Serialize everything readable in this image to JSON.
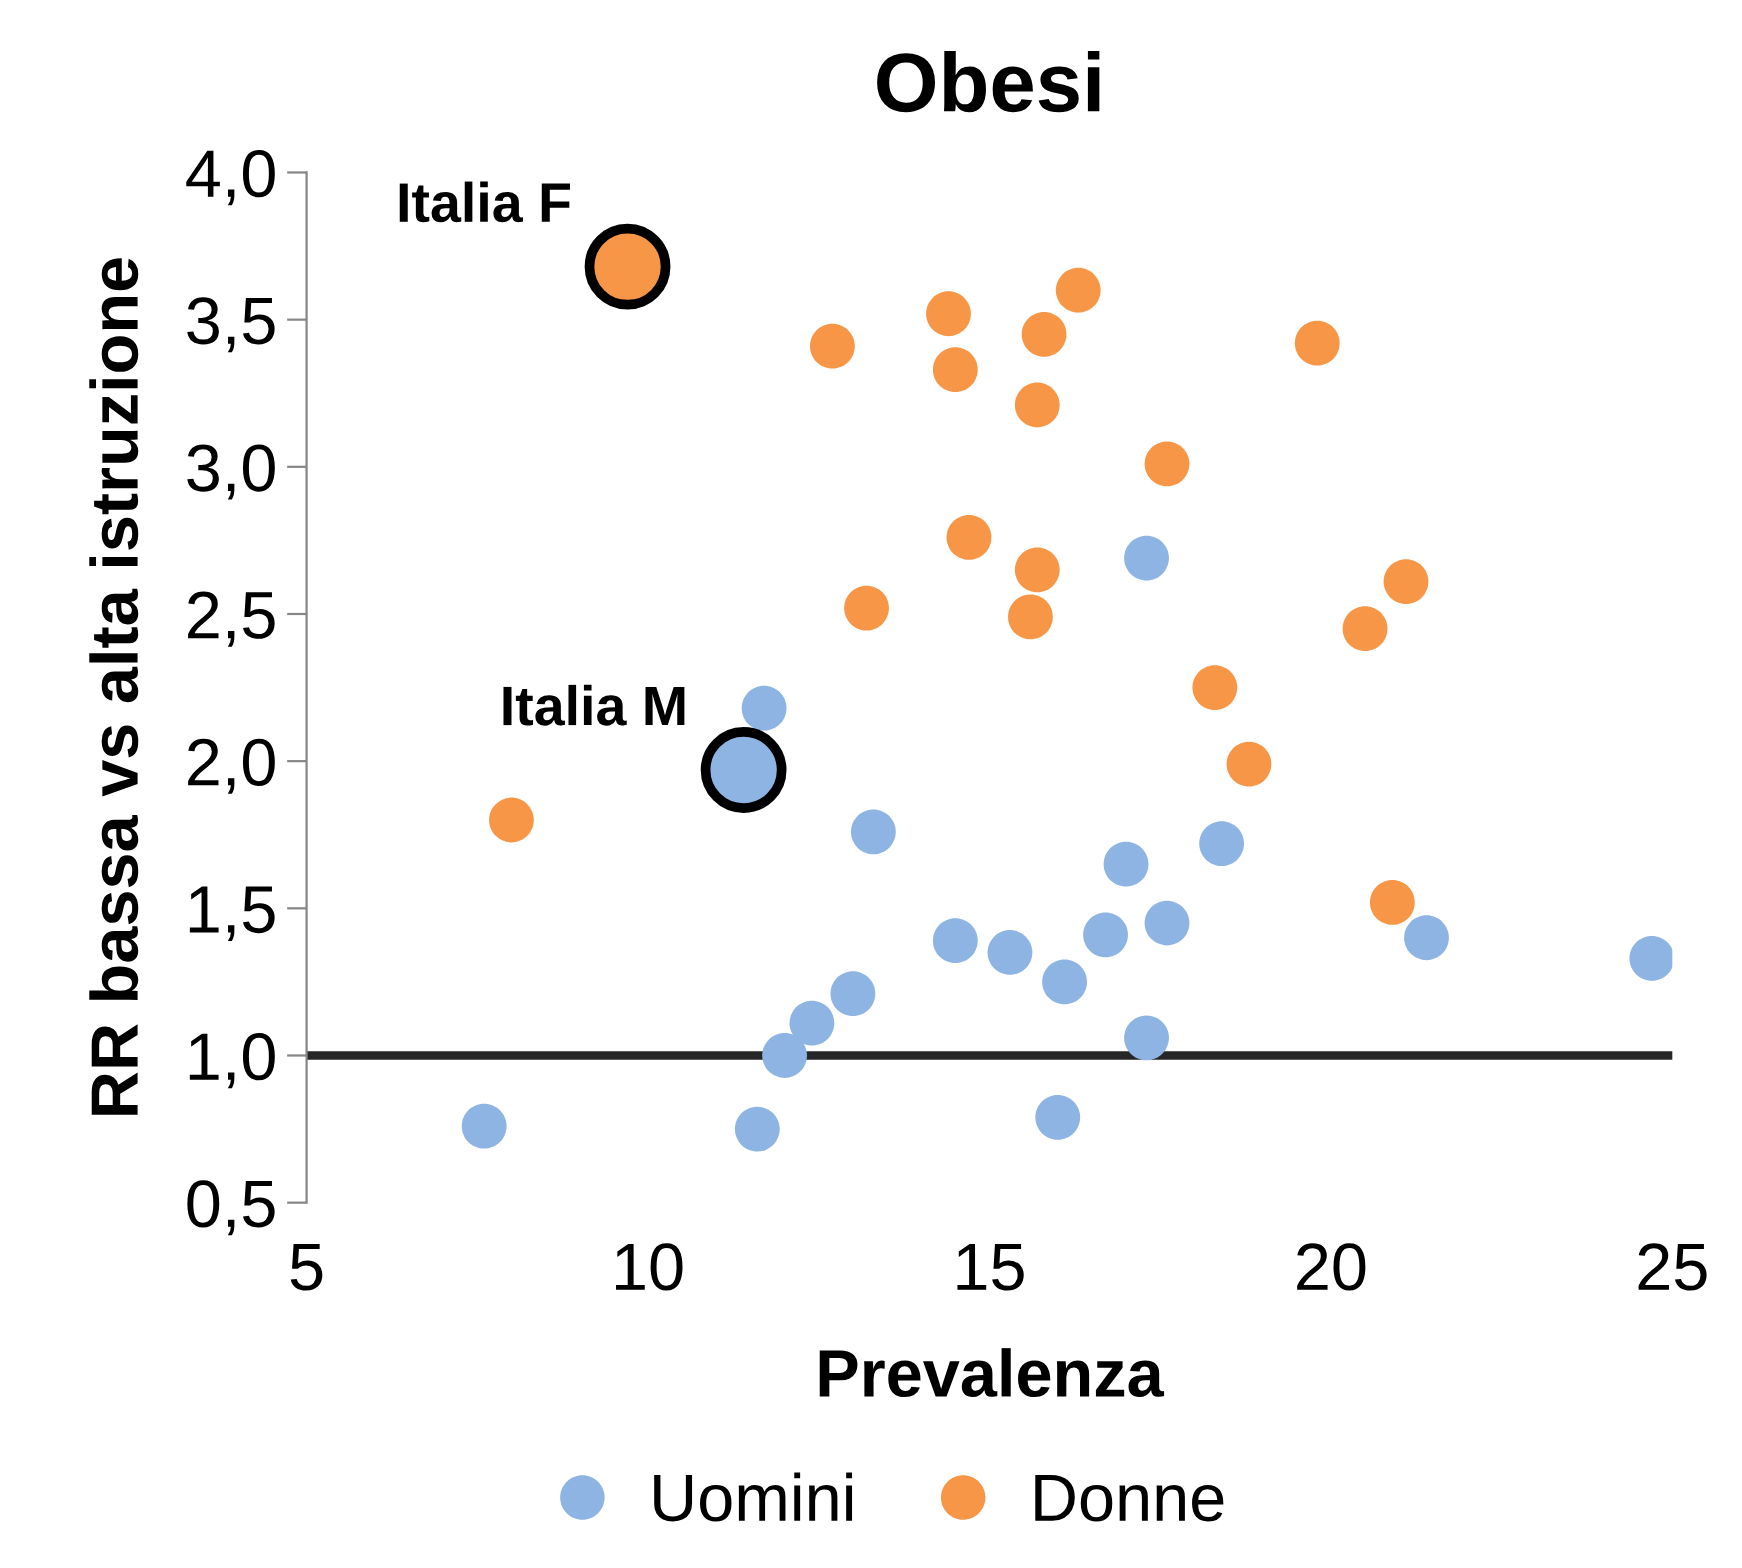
{
  "chart_data": {
    "type": "scatter",
    "title": "Obesi",
    "xlabel": "Prevalenza",
    "ylabel": "RR bassa vs alta istruzione",
    "xlim": [
      5,
      25
    ],
    "ylim": [
      0.5,
      4.0
    ],
    "xticks": [
      5,
      10,
      15,
      20,
      25
    ],
    "yticks": [
      {
        "value": 0.5,
        "label": "0,5"
      },
      {
        "value": 1.0,
        "label": "1,0"
      },
      {
        "value": 1.5,
        "label": "1,5"
      },
      {
        "value": 2.0,
        "label": "2,0"
      },
      {
        "value": 2.5,
        "label": "2,5"
      },
      {
        "value": 3.0,
        "label": "3,0"
      },
      {
        "value": 3.5,
        "label": "3,5"
      },
      {
        "value": 4.0,
        "label": "4,0"
      }
    ],
    "series": [
      {
        "name": "Uomini",
        "color": "#8eb4e3",
        "x": [
          7.6,
          11.6,
          12.0,
          12.4,
          13.0,
          13.3,
          11.7,
          14.5,
          15.3,
          16.1,
          16.0,
          16.7,
          17.0,
          17.3,
          17.6,
          17.3,
          18.4,
          21.4,
          24.7
        ],
        "values": [
          0.76,
          0.75,
          1.0,
          1.11,
          1.21,
          1.76,
          2.18,
          1.39,
          1.35,
          1.25,
          0.79,
          1.41,
          1.65,
          1.06,
          1.45,
          2.69,
          1.72,
          1.4,
          1.33
        ]
      },
      {
        "name": "Donne",
        "color": "#f79646",
        "x": [
          8.0,
          12.7,
          13.2,
          14.4,
          14.5,
          14.7,
          15.6,
          15.7,
          15.7,
          15.8,
          16.3,
          17.6,
          18.3,
          18.8,
          19.8,
          20.5,
          20.9,
          21.1
        ],
        "values": [
          1.8,
          3.41,
          2.52,
          3.52,
          3.33,
          2.76,
          2.49,
          3.21,
          2.65,
          3.45,
          3.6,
          3.01,
          2.25,
          1.99,
          3.42,
          2.45,
          1.52,
          2.61
        ]
      },
      {
        "color": "#8eb4e3",
        "x": [
          11.4
        ],
        "values": [
          1.97
        ]
      },
      {
        "color": "#f79646",
        "x": [
          9.7
        ],
        "values": [
          3.68
        ]
      }
    ],
    "annotations": [
      {
        "text": "Italia M",
        "x": 11.4,
        "y": 1.97
      },
      {
        "text": "Italia F",
        "x": 9.7,
        "y": 3.68
      }
    ],
    "ref_lines": [
      {
        "axis": "y",
        "value": 1.0,
        "color": "#262626"
      }
    ],
    "legend": "bottom",
    "grid": false,
    "marker": "circle"
  }
}
